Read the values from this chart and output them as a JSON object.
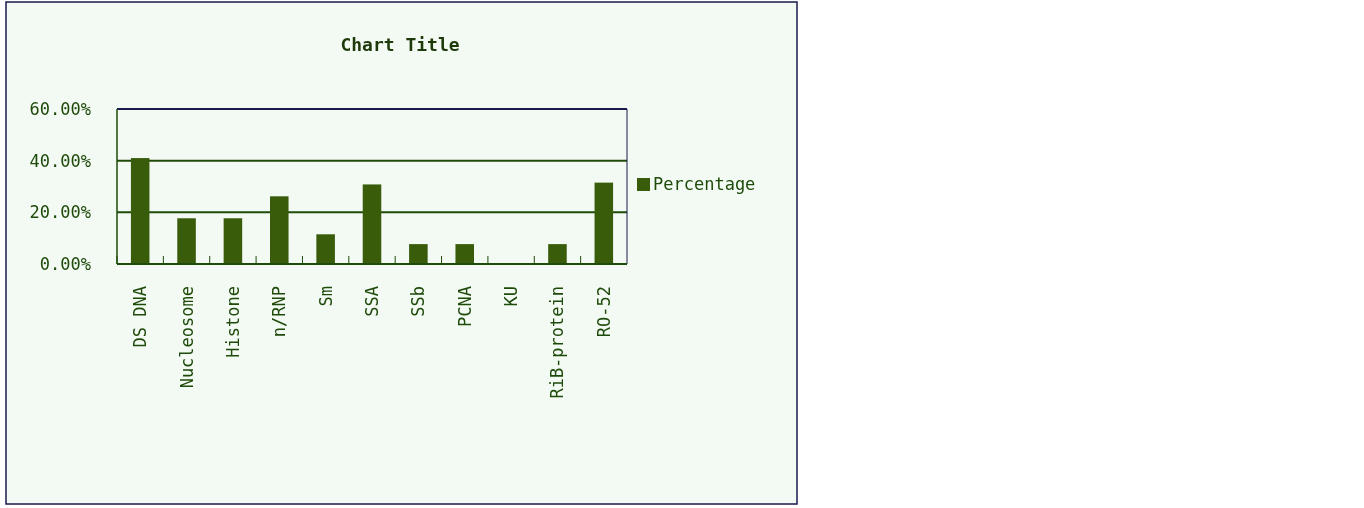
{
  "chart_data": {
    "type": "bar",
    "title": "Chart Title",
    "categories": [
      "DS DNA",
      "Nucleosome",
      "Histone",
      "n/RNP",
      "Sm",
      "SSA",
      "SSb",
      "PCNA",
      "KU",
      "RiB-protein",
      "RO-52"
    ],
    "series": [
      {
        "name": "Percentage",
        "color": "#385c0a",
        "values": [
          41,
          17.7,
          17.7,
          26.2,
          11.5,
          30.8,
          7.7,
          7.7,
          0,
          7.7,
          31.5
        ]
      }
    ],
    "ylim": [
      0,
      60
    ],
    "yticks": [
      {
        "value": 0,
        "label": "0.00%"
      },
      {
        "value": 20,
        "label": "20.00%"
      },
      {
        "value": 40,
        "label": "40.00%"
      },
      {
        "value": 60,
        "label": "60.00%"
      }
    ],
    "grid": "y",
    "legend": "right"
  }
}
